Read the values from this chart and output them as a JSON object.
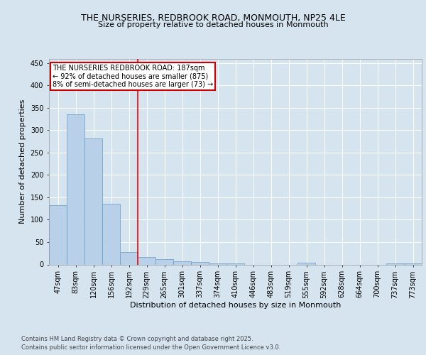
{
  "title_line1": "THE NURSERIES, REDBROOK ROAD, MONMOUTH, NP25 4LE",
  "title_line2": "Size of property relative to detached houses in Monmouth",
  "xlabel": "Distribution of detached houses by size in Monmouth",
  "ylabel": "Number of detached properties",
  "categories": [
    "47sqm",
    "83sqm",
    "120sqm",
    "156sqm",
    "192sqm",
    "229sqm",
    "265sqm",
    "301sqm",
    "337sqm",
    "374sqm",
    "410sqm",
    "446sqm",
    "483sqm",
    "519sqm",
    "555sqm",
    "592sqm",
    "628sqm",
    "664sqm",
    "700sqm",
    "737sqm",
    "773sqm"
  ],
  "values": [
    133,
    335,
    281,
    135,
    28,
    16,
    12,
    7,
    5,
    3,
    2,
    0,
    0,
    0,
    4,
    0,
    0,
    0,
    0,
    3,
    3
  ],
  "bar_color": "#b8d0e8",
  "bar_edge_color": "#6699cc",
  "red_line_x": 4,
  "annotation_text": "THE NURSERIES REDBROOK ROAD: 187sqm\n← 92% of detached houses are smaller (875)\n8% of semi-detached houses are larger (73) →",
  "annotation_box_color": "#ffffff",
  "annotation_box_edge_color": "#cc0000",
  "ylim": [
    0,
    460
  ],
  "yticks": [
    0,
    50,
    100,
    150,
    200,
    250,
    300,
    350,
    400,
    450
  ],
  "footer_line1": "Contains HM Land Registry data © Crown copyright and database right 2025.",
  "footer_line2": "Contains public sector information licensed under the Open Government Licence v3.0.",
  "bg_color": "#d6e4f0",
  "plot_bg_color": "#d6e4f0",
  "grid_color": "#ffffff",
  "title_fontsize": 9,
  "subtitle_fontsize": 8,
  "axis_label_fontsize": 8,
  "tick_fontsize": 7,
  "footer_fontsize": 6,
  "annotation_fontsize": 7
}
